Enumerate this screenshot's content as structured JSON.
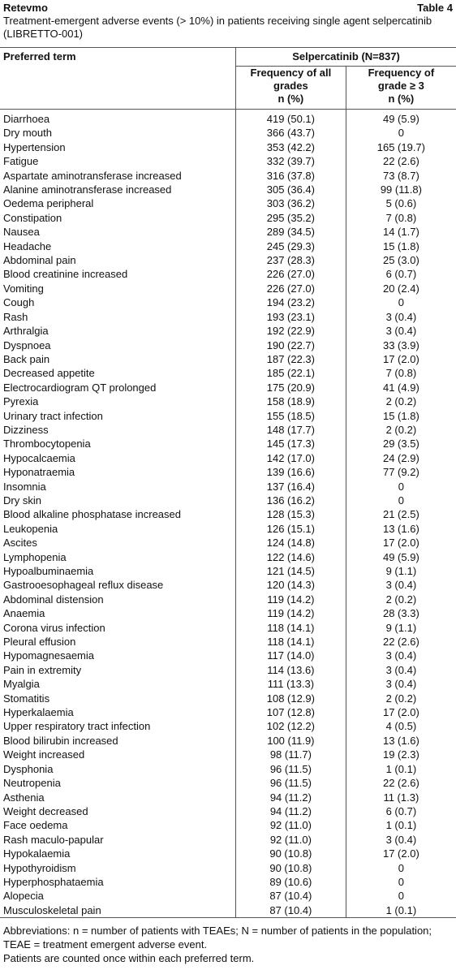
{
  "header": {
    "title": "Retevmo",
    "table_label": "Table 4",
    "caption": "Treatment-emergent adverse events (> 10%) in patients receiving single agent selpercatinib (LIBRETTO-001)"
  },
  "table": {
    "columns": {
      "term": "Preferred term",
      "group": "Selpercatinib (N=837)",
      "all": [
        "Frequency of all",
        "grades",
        "n (%)"
      ],
      "grade3": [
        "Frequency of",
        "grade ≥ 3",
        "n (%)"
      ]
    },
    "rows": [
      [
        "Diarrhoea",
        "419 (50.1)",
        "49 (5.9)"
      ],
      [
        "Dry mouth",
        "366 (43.7)",
        "0"
      ],
      [
        "Hypertension",
        "353 (42.2)",
        "165 (19.7)"
      ],
      [
        "Fatigue",
        "332 (39.7)",
        "22 (2.6)"
      ],
      [
        "Aspartate aminotransferase increased",
        "316 (37.8)",
        "73 (8.7)"
      ],
      [
        "Alanine aminotransferase increased",
        "305 (36.4)",
        "99 (11.8)"
      ],
      [
        "Oedema peripheral",
        "303 (36.2)",
        "5 (0.6)"
      ],
      [
        "Constipation",
        "295 (35.2)",
        "7 (0.8)"
      ],
      [
        "Nausea",
        "289 (34.5)",
        "14 (1.7)"
      ],
      [
        "Headache",
        "245 (29.3)",
        "15 (1.8)"
      ],
      [
        "Abdominal pain",
        "237 (28.3)",
        "25 (3.0)"
      ],
      [
        "Blood creatinine increased",
        "226 (27.0)",
        "6 (0.7)"
      ],
      [
        "Vomiting",
        "226 (27.0)",
        "20 (2.4)"
      ],
      [
        "Cough",
        "194 (23.2)",
        "0"
      ],
      [
        "Rash",
        "193 (23.1)",
        "3 (0.4)"
      ],
      [
        "Arthralgia",
        "192 (22.9)",
        "3 (0.4)"
      ],
      [
        "Dyspnoea",
        "190 (22.7)",
        "33 (3.9)"
      ],
      [
        "Back pain",
        "187 (22.3)",
        "17 (2.0)"
      ],
      [
        "Decreased appetite",
        "185 (22.1)",
        "7 (0.8)"
      ],
      [
        "Electrocardiogram QT prolonged",
        "175 (20.9)",
        "41 (4.9)"
      ],
      [
        "Pyrexia",
        "158 (18.9)",
        "2 (0.2)"
      ],
      [
        "Urinary tract infection",
        "155 (18.5)",
        "15 (1.8)"
      ],
      [
        "Dizziness",
        "148 (17.7)",
        "2 (0.2)"
      ],
      [
        "Thrombocytopenia",
        "145 (17.3)",
        "29 (3.5)"
      ],
      [
        "Hypocalcaemia",
        "142 (17.0)",
        "24 (2.9)"
      ],
      [
        "Hyponatraemia",
        "139 (16.6)",
        "77 (9.2)"
      ],
      [
        "Insomnia",
        "137 (16.4)",
        "0"
      ],
      [
        "Dry skin",
        "136 (16.2)",
        "0"
      ],
      [
        "Blood alkaline phosphatase increased",
        "128 (15.3)",
        "21 (2.5)"
      ],
      [
        "Leukopenia",
        "126 (15.1)",
        "13 (1.6)"
      ],
      [
        "Ascites",
        "124 (14.8)",
        "17 (2.0)"
      ],
      [
        "Lymphopenia",
        "122 (14.6)",
        "49 (5.9)"
      ],
      [
        "Hypoalbuminaemia",
        "121 (14.5)",
        "9 (1.1)"
      ],
      [
        "Gastrooesophageal reflux disease",
        "120 (14.3)",
        "3 (0.4)"
      ],
      [
        "Abdominal distension",
        "119 (14.2)",
        "2 (0.2)"
      ],
      [
        "Anaemia",
        "119 (14.2)",
        "28 (3.3)"
      ],
      [
        "Corona virus infection",
        "118 (14.1)",
        "9 (1.1)"
      ],
      [
        "Pleural effusion",
        "118 (14.1)",
        "22 (2.6)"
      ],
      [
        "Hypomagnesaemia",
        "117 (14.0)",
        "3 (0.4)"
      ],
      [
        "Pain in extremity",
        "114 (13.6)",
        "3 (0.4)"
      ],
      [
        "Myalgia",
        "111 (13.3)",
        "3 (0.4)"
      ],
      [
        "Stomatitis",
        "108 (12.9)",
        "2 (0.2)"
      ],
      [
        "Hyperkalaemia",
        "107 (12.8)",
        "17 (2.0)"
      ],
      [
        "Upper respiratory tract infection",
        "102 (12.2)",
        "4 (0.5)"
      ],
      [
        "Blood bilirubin increased",
        "100 (11.9)",
        "13 (1.6)"
      ],
      [
        "Weight increased",
        "98 (11.7)",
        "19 (2.3)"
      ],
      [
        "Dysphonia",
        "96 (11.5)",
        "1 (0.1)"
      ],
      [
        "Neutropenia",
        "96 (11.5)",
        "22 (2.6)"
      ],
      [
        "Asthenia",
        "94 (11.2)",
        "11 (1.3)"
      ],
      [
        "Weight decreased",
        "94 (11.2)",
        "6 (0.7)"
      ],
      [
        "Face oedema",
        "92 (11.0)",
        "1 (0.1)"
      ],
      [
        "Rash maculo-papular",
        "92 (11.0)",
        "3 (0.4)"
      ],
      [
        "Hypokalaemia",
        "90 (10.8)",
        "17 (2.0)"
      ],
      [
        "Hypothyroidism",
        "90 (10.8)",
        "0"
      ],
      [
        "Hyperphosphataemia",
        "89 (10.6)",
        "0"
      ],
      [
        "Alopecia",
        "87 (10.4)",
        "0"
      ],
      [
        "Musculoskeletal pain",
        "87 (10.4)",
        "1 (0.1)"
      ]
    ]
  },
  "footnotes": [
    "Abbreviations: n = number of patients with TEAEs; N = number of patients in the population; TEAE = treatment emergent adverse event.",
    "Patients are counted once within each preferred term."
  ]
}
